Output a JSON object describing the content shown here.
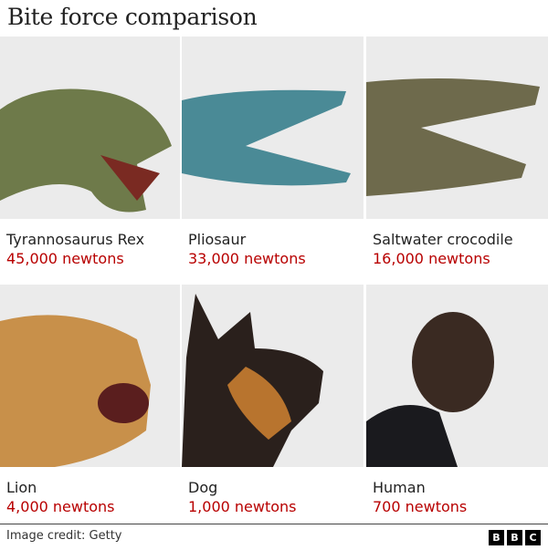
{
  "title": "Bite force comparison",
  "animals": [
    {
      "name": "Tyrannosaurus Rex",
      "force": "45,000 newtons",
      "color": "#6e7a4a"
    },
    {
      "name": "Pliosaur",
      "force": "33,000 newtons",
      "color": "#4a8a96"
    },
    {
      "name": "Saltwater crocodile",
      "force": "16,000 newtons",
      "color": "#6e6a4c"
    },
    {
      "name": "Lion",
      "force": "4,000 newtons",
      "color": "#c8904a"
    },
    {
      "name": "Dog",
      "force": "1,000 newtons",
      "color": "#2a201c"
    },
    {
      "name": "Human",
      "force": "700 newtons",
      "color": "#3a2a22"
    }
  ],
  "footer": {
    "credit": "Image credit: Getty",
    "logo": [
      "B",
      "B",
      "C"
    ]
  },
  "accent_color": "#b80000"
}
